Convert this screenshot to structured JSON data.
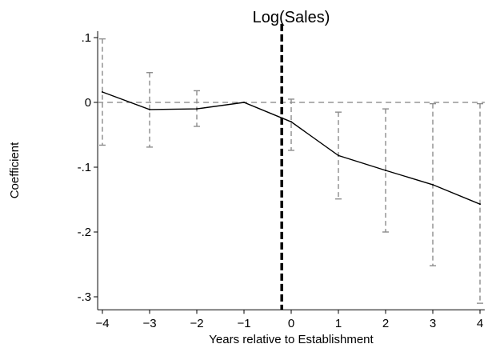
{
  "chart_data": {
    "type": "line",
    "title": "Log(Sales)",
    "xlabel": "Years relative to Establishment",
    "ylabel": "Coefficient",
    "x": [
      -4,
      -3,
      -2,
      -1,
      0,
      1,
      2,
      3,
      4
    ],
    "xticks": [
      -4,
      -3,
      -2,
      -1,
      0,
      1,
      2,
      3,
      4
    ],
    "xtick_labels": [
      "−4",
      "−3",
      "−2",
      "−1",
      "0",
      "1",
      "2",
      "3",
      "4"
    ],
    "yticks": [
      0.1,
      0,
      -0.1,
      -0.2,
      -0.3
    ],
    "ytick_labels": [
      ".1",
      "0",
      "-.1",
      "-.2",
      "-.3"
    ],
    "xlim": [
      -4.1,
      4.1
    ],
    "ylim": [
      -0.32,
      0.11
    ],
    "series": [
      {
        "values": [
          0.016,
          -0.011,
          -0.01,
          0.0,
          -0.03,
          -0.082,
          -0.105,
          -0.127,
          -0.157
        ],
        "ci_lower": [
          -0.066,
          -0.069,
          -0.037,
          0.0,
          -0.074,
          -0.149,
          -0.2,
          -0.252,
          -0.31
        ],
        "ci_upper": [
          0.098,
          0.046,
          0.018,
          0.0,
          0.005,
          -0.015,
          -0.01,
          -0.002,
          -0.002
        ],
        "color": "#000000"
      }
    ],
    "reference_lines": [
      {
        "orientation": "horizontal",
        "value": 0,
        "style": "dashed",
        "color": "#808080"
      },
      {
        "orientation": "vertical",
        "value": -0.2,
        "style": "thick-dashed",
        "color": "#000000"
      }
    ],
    "ci_color": "#8c8c8c",
    "grid": false,
    "legend": "none"
  }
}
